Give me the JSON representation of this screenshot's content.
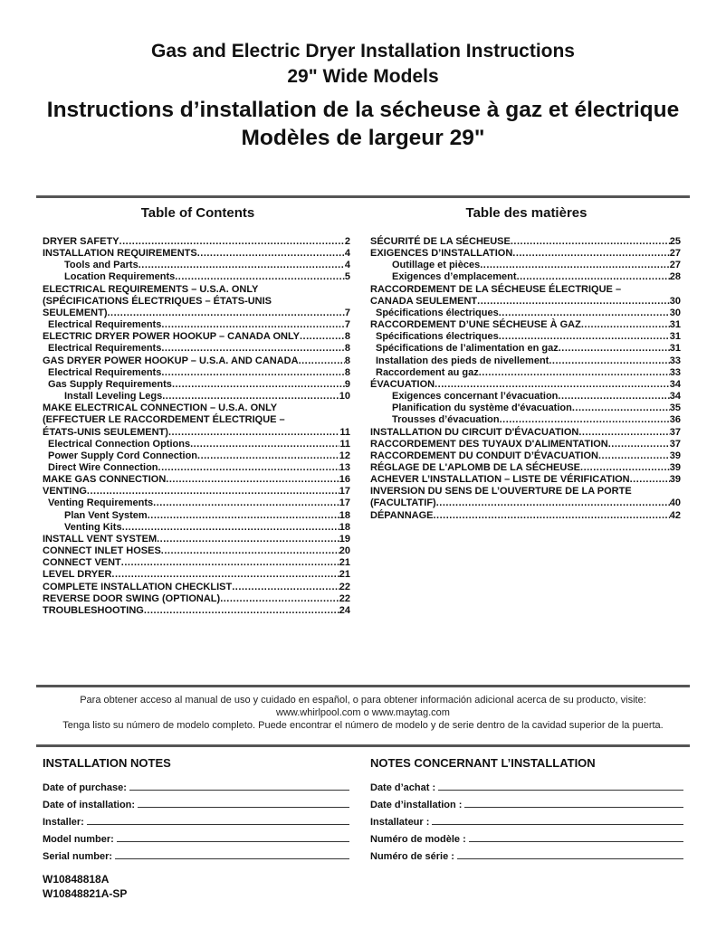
{
  "header": {
    "title_en_1": "Gas and Electric Dryer Installation Instructions",
    "title_en_2": "29\" Wide Models",
    "title_fr_1": "Instructions d’installation de la sécheuse à gaz et électrique",
    "title_fr_2": "Modèles de largeur 29\""
  },
  "toc_en": {
    "heading": "Table of Contents",
    "entries": [
      {
        "lines": [
          "DRYER SAFETY"
        ],
        "page": "2",
        "level": 0
      },
      {
        "lines": [
          "INSTALLATION REQUIREMENTS"
        ],
        "page": "4",
        "level": 0
      },
      {
        "lines": [
          "Tools and Parts"
        ],
        "page": "4",
        "level": 2
      },
      {
        "lines": [
          "Location Requirements"
        ],
        "page": "5",
        "level": 2
      },
      {
        "lines": [
          "ELECTRICAL REQUIREMENTS – U.S.A. ONLY",
          "(SPÉCIFICATIONS ÉLECTRIQUES – ÉTATS-UNIS",
          "SEULEMENT)"
        ],
        "page": "7",
        "level": 0
      },
      {
        "lines": [
          "Electrical Requirements"
        ],
        "page": "7",
        "level": 1
      },
      {
        "lines": [
          "ELECTRIC DRYER POWER HOOKUP – CANADA ONLY"
        ],
        "page": "8",
        "level": 0
      },
      {
        "lines": [
          "Electrical Requirements"
        ],
        "page": "8",
        "level": 1
      },
      {
        "lines": [
          "GAS DRYER POWER HOOKUP – U.S.A. AND CANADA"
        ],
        "page": "8",
        "level": 0
      },
      {
        "lines": [
          "Electrical Requirements"
        ],
        "page": "8",
        "level": 1
      },
      {
        "lines": [
          "Gas Supply Requirements"
        ],
        "page": "9",
        "level": 1
      },
      {
        "lines": [
          "Install Leveling Legs"
        ],
        "page": "10",
        "level": 2
      },
      {
        "lines": [
          "MAKE ELECTRICAL CONNECTION – U.S.A. ONLY",
          "(EFFECTUER LE RACCORDEMENT ÉLECTRIQUE –",
          "ÉTATS-UNIS SEULEMENT)"
        ],
        "page": "11",
        "level": 0
      },
      {
        "lines": [
          "Electrical Connection Options"
        ],
        "page": "11",
        "level": 1
      },
      {
        "lines": [
          "Power Supply Cord Connection"
        ],
        "page": "12",
        "level": 1
      },
      {
        "lines": [
          "Direct Wire Connection"
        ],
        "page": "13",
        "level": 1
      },
      {
        "lines": [
          "MAKE GAS CONNECTION"
        ],
        "page": "16",
        "level": 0
      },
      {
        "lines": [
          "VENTING"
        ],
        "page": "17",
        "level": 0
      },
      {
        "lines": [
          "Venting Requirements"
        ],
        "page": "17",
        "level": 1
      },
      {
        "lines": [
          "Plan Vent System"
        ],
        "page": "18",
        "level": 2
      },
      {
        "lines": [
          "Venting Kits"
        ],
        "page": "18",
        "level": 2
      },
      {
        "lines": [
          "INSTALL VENT SYSTEM"
        ],
        "page": "19",
        "level": 0
      },
      {
        "lines": [
          "CONNECT INLET HOSES"
        ],
        "page": "20",
        "level": 0
      },
      {
        "lines": [
          "CONNECT VENT"
        ],
        "page": "21",
        "level": 0
      },
      {
        "lines": [
          "LEVEL DRYER"
        ],
        "page": "21",
        "level": 0
      },
      {
        "lines": [
          "COMPLETE INSTALLATION CHECKLIST"
        ],
        "page": "22",
        "level": 0
      },
      {
        "lines": [
          "REVERSE DOOR SWING (OPTIONAL)"
        ],
        "page": "22",
        "level": 0
      },
      {
        "lines": [
          "TROUBLESHOOTING"
        ],
        "page": "24",
        "level": 0
      }
    ]
  },
  "toc_fr": {
    "heading": "Table des matières",
    "entries": [
      {
        "lines": [
          "SÉCURITÉ DE LA SÉCHEUSE"
        ],
        "page": "25",
        "level": 0
      },
      {
        "lines": [
          "EXIGENCES D’INSTALLATION"
        ],
        "page": "27",
        "level": 0
      },
      {
        "lines": [
          "Outillage et pièces"
        ],
        "page": "27",
        "level": 2
      },
      {
        "lines": [
          "Exigences d’emplacement"
        ],
        "page": "28",
        "level": 2
      },
      {
        "lines": [
          "RACCORDEMENT DE LA SÉCHEUSE ÉLECTRIQUE –",
          "CANADA SEULEMENT"
        ],
        "page": "30",
        "level": 0
      },
      {
        "lines": [
          "Spécifications électriques"
        ],
        "page": "30",
        "level": 1
      },
      {
        "lines": [
          "RACCORDEMENT D’UNE SÉCHEUSE À GAZ"
        ],
        "page": "31",
        "level": 0
      },
      {
        "lines": [
          "Spécifications électriques"
        ],
        "page": "31",
        "level": 1
      },
      {
        "lines": [
          "Spécifications de l’alimentation en gaz"
        ],
        "page": "31",
        "level": 1
      },
      {
        "lines": [
          "Installation des pieds de nivellement"
        ],
        "page": "33",
        "level": 1
      },
      {
        "lines": [
          "Raccordement au gaz"
        ],
        "page": "33",
        "level": 1
      },
      {
        "lines": [
          "ÉVACUATION"
        ],
        "page": "34",
        "level": 0
      },
      {
        "lines": [
          "Exigences concernant l’évacuation"
        ],
        "page": "34",
        "level": 2
      },
      {
        "lines": [
          "Planification du système d'évacuation"
        ],
        "page": "35",
        "level": 2
      },
      {
        "lines": [
          "Trousses d’évacuation"
        ],
        "page": "36",
        "level": 2
      },
      {
        "lines": [
          "INSTALLATION DU CIRCUIT D'ÉVACUATION"
        ],
        "page": "37",
        "level": 0
      },
      {
        "lines": [
          "RACCORDEMENT DES TUYAUX D'ALIMENTATION"
        ],
        "page": "37",
        "level": 0
      },
      {
        "lines": [
          "RACCORDEMENT DU CONDUIT D’ÉVACUATION"
        ],
        "page": "39",
        "level": 0
      },
      {
        "lines": [
          "RÉGLAGE DE L'APLOMB DE LA SÉCHEUSE"
        ],
        "page": "39",
        "level": 0
      },
      {
        "lines": [
          "ACHEVER L’INSTALLATION – LISTE DE VÉRIFICATION"
        ],
        "page": "39",
        "level": 0
      },
      {
        "lines": [
          "INVERSION DU SENS DE L’OUVERTURE DE LA PORTE",
          "(FACULTATIF)"
        ],
        "page": "40",
        "level": 0
      },
      {
        "lines": [
          "DÉPANNAGE"
        ],
        "page": "42",
        "level": 0
      }
    ]
  },
  "spanish_note": {
    "line1": "Para obtener acceso al manual de uso y cuidado en español, o para obtener información adicional acerca de su producto, visite:",
    "line2": "www.whirlpool.com o www.maytag.com",
    "line3": "Tenga listo su número de modelo completo. Puede encontrar el número de modelo y de serie dentro de la cavidad superior de la puerta."
  },
  "notes_en": {
    "heading": "INSTALLATION NOTES",
    "fields": [
      "Date of purchase:",
      "Date of installation:",
      "Installer:",
      "Model number:",
      "Serial number:"
    ]
  },
  "notes_fr": {
    "heading": "NOTES CONCERNANT L’INSTALLATION",
    "fields": [
      "Date d’achat :",
      "Date d’installation :",
      "Installateur :",
      "Numéro de modèle :",
      "Numéro de série :"
    ]
  },
  "codes": {
    "code1": "W10848818A",
    "code2": "W10848821A-SP"
  }
}
